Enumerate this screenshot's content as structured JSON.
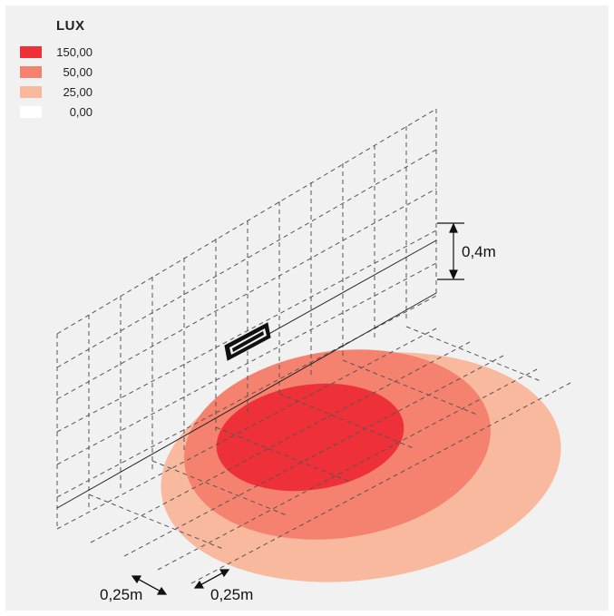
{
  "legend": {
    "title": "LUX",
    "items": [
      {
        "value": "150,00",
        "color": "#ee3138"
      },
      {
        "value": "50,00",
        "color": "#f5826e"
      },
      {
        "value": "25,00",
        "color": "#f9b99e"
      },
      {
        "value": "0,00",
        "color": "#ffffff"
      }
    ]
  },
  "dimensions": {
    "height": "0,4m",
    "grid_x": "0,25m",
    "grid_y": "0,25m"
  }
}
